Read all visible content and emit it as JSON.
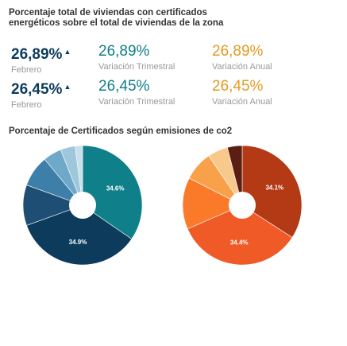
{
  "header": {
    "title": "Porcentaje total de viviendas con certificados energéticos sobre el total de viviendas de la zona"
  },
  "stats": [
    {
      "value": "26,89%",
      "caption": "Febrero",
      "icon": "caret-up-icon"
    },
    {
      "value": "26,89%",
      "caption": "Variación Trimestral"
    },
    {
      "value": "26,89%",
      "caption": "Variación Anual"
    },
    {
      "value": "26,45%",
      "caption": "Febrero",
      "icon": "caret-up-icon"
    },
    {
      "value": "26,45%",
      "caption": "Variación Trimestral"
    },
    {
      "value": "26,45%",
      "caption": "Variación Anual"
    }
  ],
  "caret_glyph": "▲",
  "chart_data": [
    {
      "type": "pie",
      "title": "Porcentaje de Certificados según emisiones de co2",
      "values": [
        34.6,
        34.9,
        11.0,
        8.5,
        5.0,
        4.0,
        2.0
      ],
      "colors": [
        "#0f7f8a",
        "#0c3b5c",
        "#1f4e75",
        "#3d7fa8",
        "#6ea9c9",
        "#9fc7db",
        "#c9dfeb"
      ],
      "data_labels": [
        "34.6%",
        "34.9%",
        "",
        "",
        "",
        "",
        ""
      ]
    },
    {
      "type": "pie",
      "values": [
        34.1,
        34.4,
        14.0,
        8.0,
        5.5,
        4.0
      ],
      "colors": [
        "#b33a15",
        "#ef5a26",
        "#fa7a2a",
        "#f8a04a",
        "#f9c98c",
        "#5a1f12"
      ],
      "data_labels": [
        "34.1%",
        "34.4%",
        "",
        "",
        "",
        ""
      ]
    }
  ]
}
